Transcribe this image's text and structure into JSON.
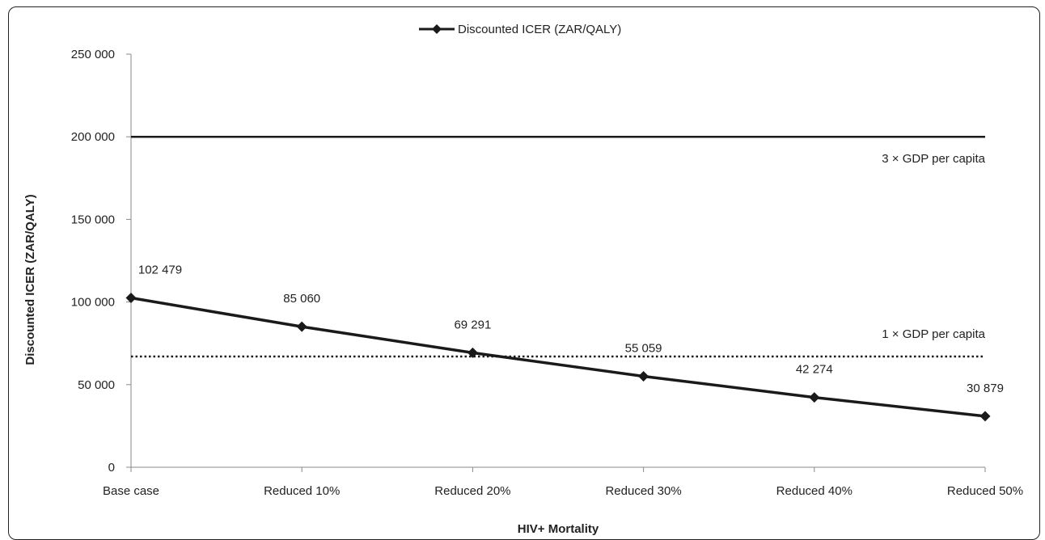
{
  "chart_data": {
    "type": "line",
    "categories": [
      "Base case",
      "Reduced 10%",
      "Reduced 20%",
      "Reduced 30%",
      "Reduced 40%",
      "Reduced 50%"
    ],
    "series": [
      {
        "name": "Discounted ICER (ZAR/QALY)",
        "values": [
          102479,
          85060,
          69291,
          55059,
          42274,
          30879
        ],
        "labels": [
          "102 479",
          "85 060",
          "69 291",
          "55 059",
          "42 274",
          "30 879"
        ],
        "color": "#1a1a1a",
        "marker": "diamond"
      }
    ],
    "reference_lines": [
      {
        "value": 200000,
        "label": "3 × GDP per capita",
        "style": "solid"
      },
      {
        "value": 67000,
        "label": "1 × GDP per capita",
        "style": "dotted"
      }
    ],
    "xlabel": "HIV+ Mortality",
    "ylabel": "Discounted ICER (ZAR/QALY)",
    "ylim": [
      0,
      250000
    ],
    "yticks": [
      0,
      50000,
      100000,
      150000,
      200000,
      250000
    ],
    "ytick_labels": [
      "0",
      "50 000",
      "100 000",
      "150 000",
      "200 000",
      "250 000"
    ],
    "legend": {
      "position": "top-center"
    },
    "grid": false
  }
}
